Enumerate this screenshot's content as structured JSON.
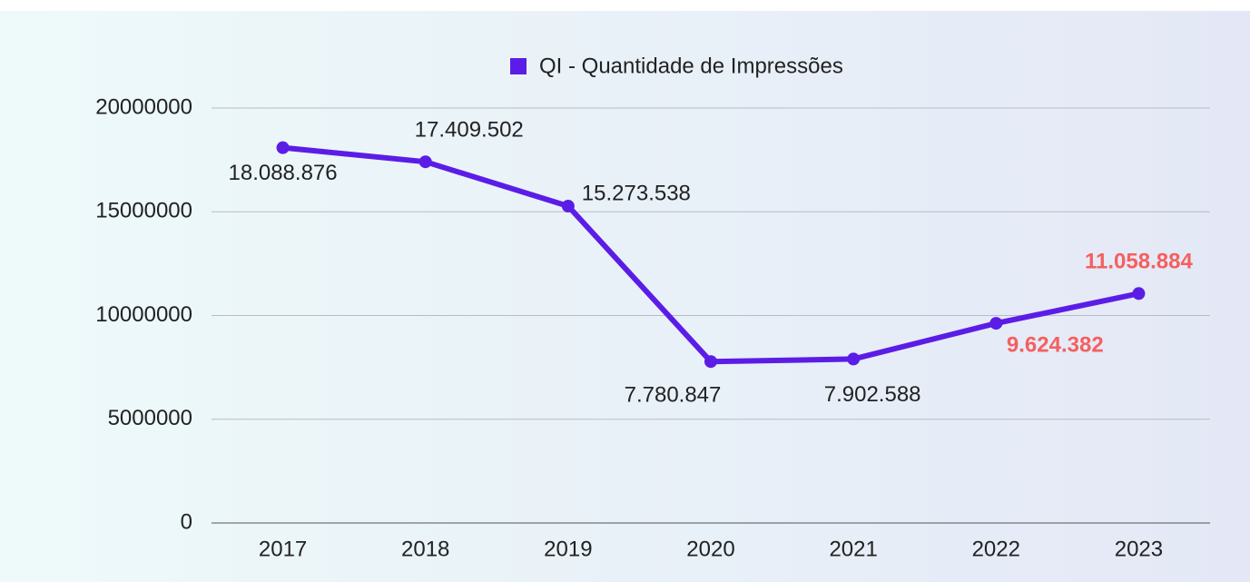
{
  "chart_data": {
    "type": "line",
    "legend": "top",
    "categories": [
      "2017",
      "2018",
      "2019",
      "2020",
      "2021",
      "2022",
      "2023"
    ],
    "series": [
      {
        "name": "QI - Quantidade de Impressões",
        "color": "#5b1de6",
        "values": [
          18088876,
          17409502,
          15273538,
          7780847,
          7902588,
          9624382,
          11058884
        ],
        "value_labels": [
          "18.088.876",
          "17.409.502",
          "15.273.538",
          "7.780.847",
          "7.902.588",
          "9.624.382",
          "11.058.884"
        ],
        "label_colors": [
          "#222222",
          "#222222",
          "#222222",
          "#222222",
          "#222222",
          "#f4605f",
          "#f4605f"
        ],
        "label_weights": [
          "normal",
          "normal",
          "normal",
          "normal",
          "normal",
          "bold",
          "bold"
        ]
      }
    ],
    "ylim": [
      0,
      20000000
    ],
    "yticks": [
      0,
      5000000,
      10000000,
      15000000,
      20000000
    ],
    "grid": true
  }
}
